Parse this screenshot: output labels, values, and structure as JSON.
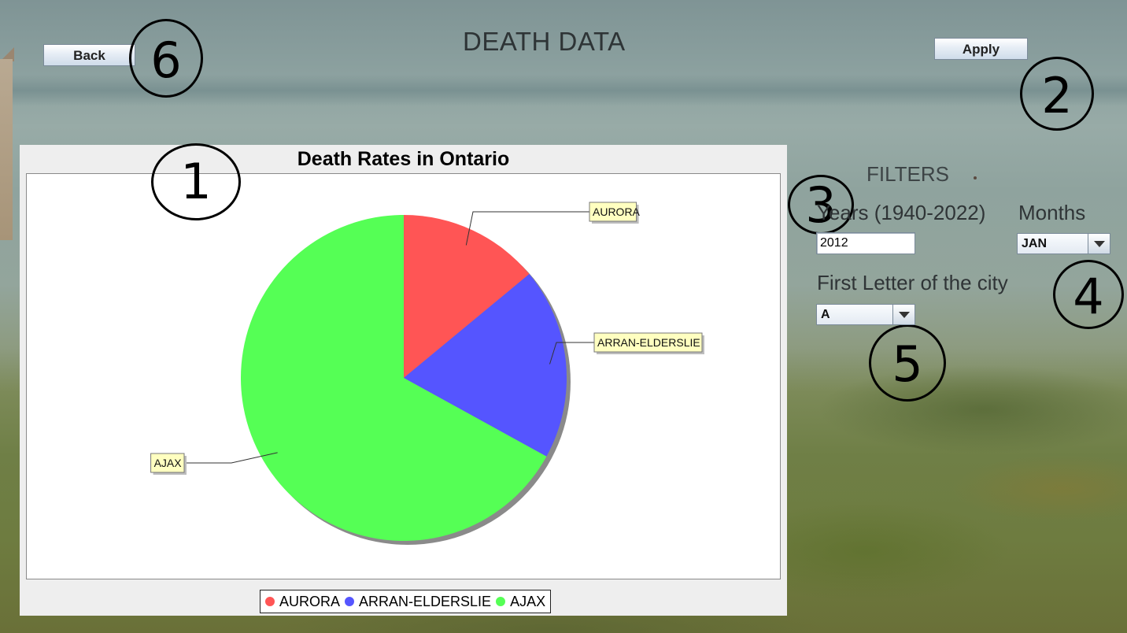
{
  "header": {
    "title": "DEATH DATA",
    "back_label": "Back",
    "apply_label": "Apply"
  },
  "annotations": [
    "1",
    "2",
    "3",
    "4",
    "5",
    "6"
  ],
  "filters": {
    "title": "FILTERS",
    "years_label": "Years (1940-2022)",
    "year_value": "2012",
    "months_label": "Months",
    "month_value": "JAN",
    "letter_label": "First Letter of the city",
    "letter_value": "A"
  },
  "chart_data": {
    "type": "pie",
    "title": "Death Rates in Ontario",
    "categories": [
      "AURORA",
      "ARRAN-ELDERSLIE",
      "AJAX"
    ],
    "values": [
      14,
      19,
      67
    ],
    "colors": [
      "#ff5555",
      "#5555ff",
      "#55ff55"
    ],
    "start_angle_deg": 90,
    "direction": "clockwise",
    "legend": "bottom"
  }
}
